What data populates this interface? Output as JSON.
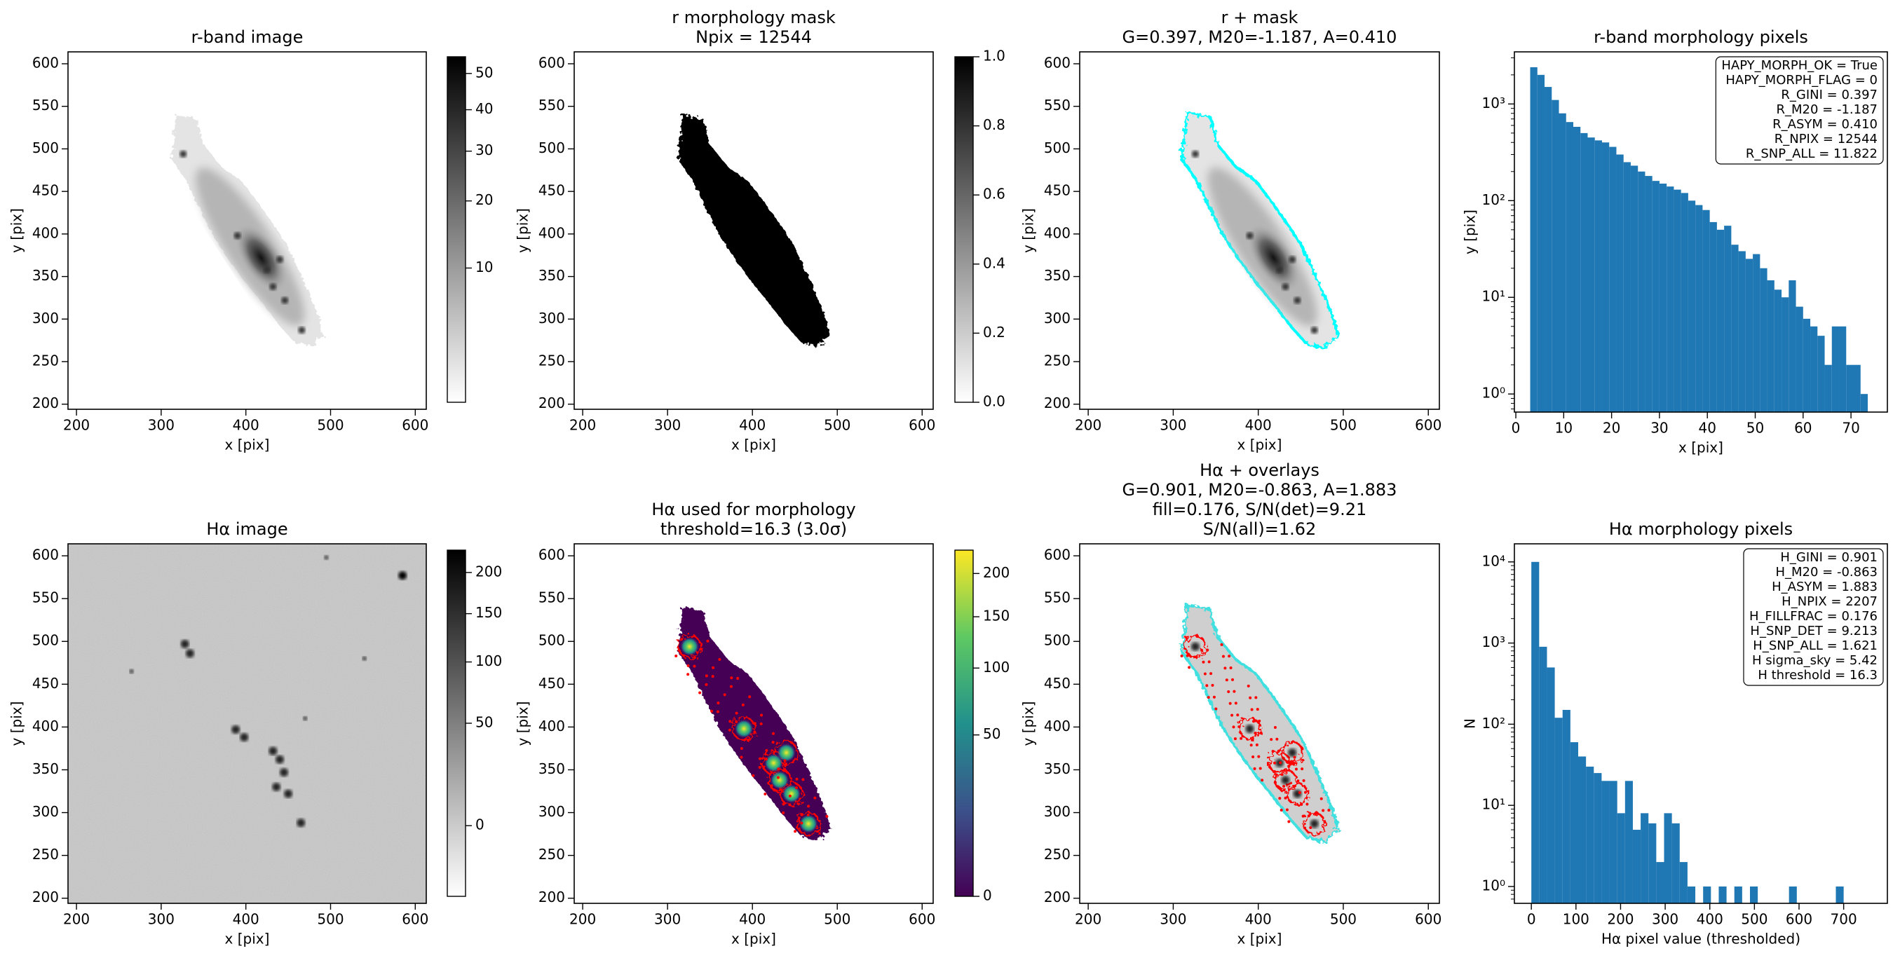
{
  "chart_data": [
    {
      "type": "image",
      "title": [
        "r-band image"
      ],
      "xlabel": "x [pix]",
      "ylabel": "y [pix]",
      "xlim": [
        190,
        613
      ],
      "ylim": [
        194,
        614
      ],
      "xticks": [
        200,
        300,
        400,
        500,
        600
      ],
      "yticks": [
        200,
        250,
        300,
        350,
        400,
        450,
        500,
        550,
        600
      ],
      "colorbar": {
        "cmap": "gray_r",
        "scale": "sqrt",
        "clim": [
          2,
          55
        ],
        "ticks": [
          10,
          20,
          30,
          40,
          50
        ]
      }
    },
    {
      "type": "image",
      "title": [
        "r morphology mask",
        "Npix = 12544"
      ],
      "xlabel": "x [pix]",
      "ylabel": "y [pix]",
      "xlim": [
        190,
        613
      ],
      "ylim": [
        194,
        614
      ],
      "xticks": [
        200,
        300,
        400,
        500,
        600
      ],
      "yticks": [
        200,
        250,
        300,
        350,
        400,
        450,
        500,
        550,
        600
      ],
      "colorbar": {
        "cmap": "gray_r",
        "scale": "linear",
        "clim": [
          0,
          1
        ],
        "ticks": [
          {
            "value": 0,
            "label": "0.0"
          },
          0.2,
          0.4,
          0.6,
          0.8,
          {
            "value": 1,
            "label": "1.0"
          }
        ]
      }
    },
    {
      "type": "image",
      "title": [
        "r + mask",
        "G=0.397, M20=-1.187, A=0.410"
      ],
      "xlabel": "x [pix]",
      "ylabel": "y [pix]",
      "xlim": [
        190,
        613
      ],
      "ylim": [
        194,
        614
      ],
      "xticks": [
        200,
        300,
        400,
        500,
        600
      ],
      "yticks": [
        200,
        250,
        300,
        350,
        400,
        450,
        500,
        550,
        600
      ]
    },
    {
      "type": "histogram",
      "title": [
        "r-band morphology pixels"
      ],
      "xlabel": "x [pix]",
      "ylabel": "y [pix]",
      "color": "#1f77b4",
      "log_y": true,
      "xlim": [
        -0.3,
        77.6
      ],
      "ylim": [
        0.65,
        3460
      ],
      "xticks": [
        0,
        10,
        20,
        30,
        40,
        50,
        60,
        70
      ],
      "yticks": [
        {
          "value": 1,
          "label": "10⁰"
        },
        {
          "value": 10,
          "label": "10¹"
        },
        {
          "value": 100,
          "label": "10²"
        },
        {
          "value": 1000,
          "label": "10³"
        }
      ],
      "bins": [
        3,
        4.5,
        6,
        7.5,
        9,
        10.5,
        12,
        13.5,
        15,
        16.5,
        18,
        19.5,
        21,
        22.5,
        24,
        25.5,
        27,
        28.5,
        30,
        31.5,
        33,
        34.5,
        36,
        37.5,
        39,
        40.5,
        42,
        43.5,
        45,
        46.5,
        48,
        49.5,
        51,
        52.5,
        54,
        55.5,
        57,
        58.5,
        60,
        61.5,
        63,
        64.5,
        66,
        67.5,
        69,
        70.5,
        72,
        73.5,
        75
      ],
      "counts": [
        2400,
        2000,
        1500,
        1100,
        800,
        650,
        580,
        500,
        450,
        420,
        400,
        360,
        300,
        250,
        230,
        200,
        180,
        160,
        150,
        140,
        130,
        120,
        100,
        90,
        80,
        60,
        50,
        55,
        35,
        30,
        25,
        28,
        20,
        15,
        12,
        10,
        15,
        8,
        6,
        5,
        4,
        2,
        5,
        5,
        2,
        2,
        1,
        0
      ],
      "annotation": [
        "HAPY_MORPH_OK = True",
        "HAPY_MORPH_FLAG = 0",
        "R_GINI = 0.397",
        "R_M20 = -1.187",
        "R_ASYM = 0.410",
        "R_NPIX = 12544",
        "R_SNP_ALL = 11.822"
      ]
    },
    {
      "type": "image",
      "title": [
        "Hα image"
      ],
      "xlabel": "x [pix]",
      "ylabel": "y [pix]",
      "xlim": [
        190,
        613
      ],
      "ylim": [
        194,
        614
      ],
      "xticks": [
        200,
        300,
        400,
        500,
        600
      ],
      "yticks": [
        200,
        250,
        300,
        350,
        400,
        450,
        500,
        550,
        600
      ],
      "colorbar": {
        "cmap": "gray_r",
        "scale": "sqrt",
        "clim": [
          -10,
          230
        ],
        "ticks": [
          0,
          50,
          100,
          150,
          200
        ]
      }
    },
    {
      "type": "image",
      "title": [
        "Hα used for morphology",
        "threshold=16.3 (3.0σ)"
      ],
      "xlabel": "x [pix]",
      "ylabel": "y [pix]",
      "xlim": [
        190,
        613
      ],
      "ylim": [
        194,
        614
      ],
      "xticks": [
        200,
        300,
        400,
        500,
        600
      ],
      "yticks": [
        200,
        250,
        300,
        350,
        400,
        450,
        500,
        550,
        600
      ],
      "colorbar": {
        "cmap": "viridis",
        "scale": "sqrt",
        "clim": [
          0,
          230
        ],
        "ticks": [
          0,
          50,
          100,
          150,
          200
        ]
      }
    },
    {
      "type": "image",
      "title": [
        "Hα + overlays",
        "G=0.901, M20=-0.863, A=1.883",
        "fill=0.176, S/N(det)=9.21",
        "S/N(all)=1.62"
      ],
      "xlabel": "x [pix]",
      "ylabel": "y [pix]",
      "xlim": [
        190,
        613
      ],
      "ylim": [
        194,
        614
      ],
      "xticks": [
        200,
        300,
        400,
        500,
        600
      ],
      "yticks": [
        200,
        250,
        300,
        350,
        400,
        450,
        500,
        550,
        600
      ]
    },
    {
      "type": "histogram",
      "title": [
        "Hα morphology pixels"
      ],
      "xlabel": "Hα pixel value (thresholded)",
      "ylabel": "N",
      "color": "#1f77b4",
      "log_y": true,
      "xlim": [
        -38,
        798
      ],
      "ylim": [
        0.62,
        16700
      ],
      "xticks": [
        0,
        100,
        200,
        300,
        400,
        500,
        600,
        700
      ],
      "yticks": [
        {
          "value": 1,
          "label": "10⁰"
        },
        {
          "value": 10,
          "label": "10¹"
        },
        {
          "value": 100,
          "label": "10²"
        },
        {
          "value": 1000,
          "label": "10³"
        },
        {
          "value": 10000,
          "label": "10⁴"
        }
      ],
      "bins": [
        0,
        17.5,
        35,
        52.5,
        70,
        87.5,
        105,
        122.5,
        140,
        157.5,
        175,
        192.5,
        210,
        227.5,
        245,
        262.5,
        280,
        297.5,
        315,
        332.5,
        350,
        367.5,
        385,
        402.5,
        420,
        437.5,
        455,
        472.5,
        490,
        507.5,
        525,
        542.5,
        560,
        577.5,
        595,
        612.5,
        630,
        647.5,
        665,
        682.5,
        700
      ],
      "counts": [
        10000,
        900,
        500,
        120,
        150,
        60,
        40,
        30,
        25,
        20,
        20,
        8,
        20,
        5,
        8,
        6,
        2,
        8,
        6,
        2,
        1,
        0,
        1,
        0,
        1,
        0,
        1,
        0,
        1,
        0,
        0,
        0,
        0,
        1,
        0,
        0,
        0,
        0,
        0,
        1
      ],
      "annotation": [
        "H_GINI = 0.901",
        "H_M20 = -0.863",
        "H_ASYM = 1.883",
        "H_NPIX = 2207",
        "H_FILLFRAC = 0.176",
        "H_SNP_DET = 9.213",
        "H_SNP_ALL = 1.621",
        "H sigma_sky = 5.42",
        "H threshold = 16.3"
      ]
    }
  ]
}
